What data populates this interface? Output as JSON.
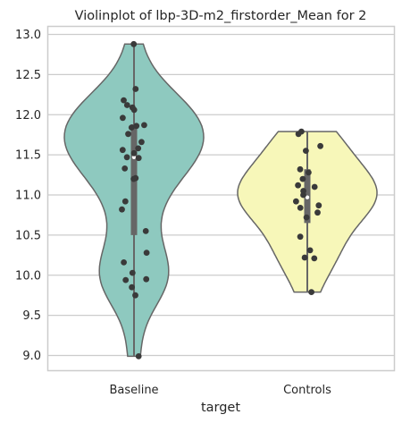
{
  "chart_data": {
    "type": "violin",
    "title": "Violinplot of lbp-3D-m2_firstorder_Mean for 2",
    "xlabel": "target",
    "ylabel": "",
    "ylim": [
      8.8,
      13.08
    ],
    "yticks": [
      "9.0",
      "9.5",
      "10.0",
      "10.5",
      "11.0",
      "11.5",
      "12.0",
      "12.5",
      "13.0"
    ],
    "grid": true,
    "categories": [
      "Baseline",
      "Controls"
    ],
    "colors": {
      "Baseline": "#8ec9bf",
      "Controls": "#f7f7b9",
      "points": "#3a3a3a",
      "box": "#666666"
    },
    "series": [
      {
        "category": "Baseline",
        "range": [
          8.99,
          12.88
        ],
        "quartiles": [
          10.5,
          11.47,
          11.88
        ],
        "points": [
          12.88,
          12.32,
          12.18,
          12.12,
          12.09,
          12.06,
          11.96,
          11.87,
          11.86,
          11.84,
          11.76,
          11.66,
          11.58,
          11.56,
          11.52,
          11.47,
          11.46,
          11.33,
          11.21,
          11.2,
          10.92,
          10.82,
          10.55,
          10.28,
          10.16,
          10.03,
          9.95,
          9.94,
          9.85,
          9.75,
          8.99
        ]
      },
      {
        "category": "Controls",
        "range": [
          9.79,
          11.79
        ],
        "quartiles": [
          10.65,
          10.97,
          11.32
        ],
        "points": [
          11.79,
          11.76,
          11.61,
          11.55,
          11.32,
          11.28,
          11.2,
          11.12,
          11.1,
          11.05,
          11.0,
          10.92,
          10.87,
          10.84,
          10.78,
          10.72,
          10.48,
          10.31,
          10.22,
          10.21,
          9.79
        ]
      }
    ]
  }
}
